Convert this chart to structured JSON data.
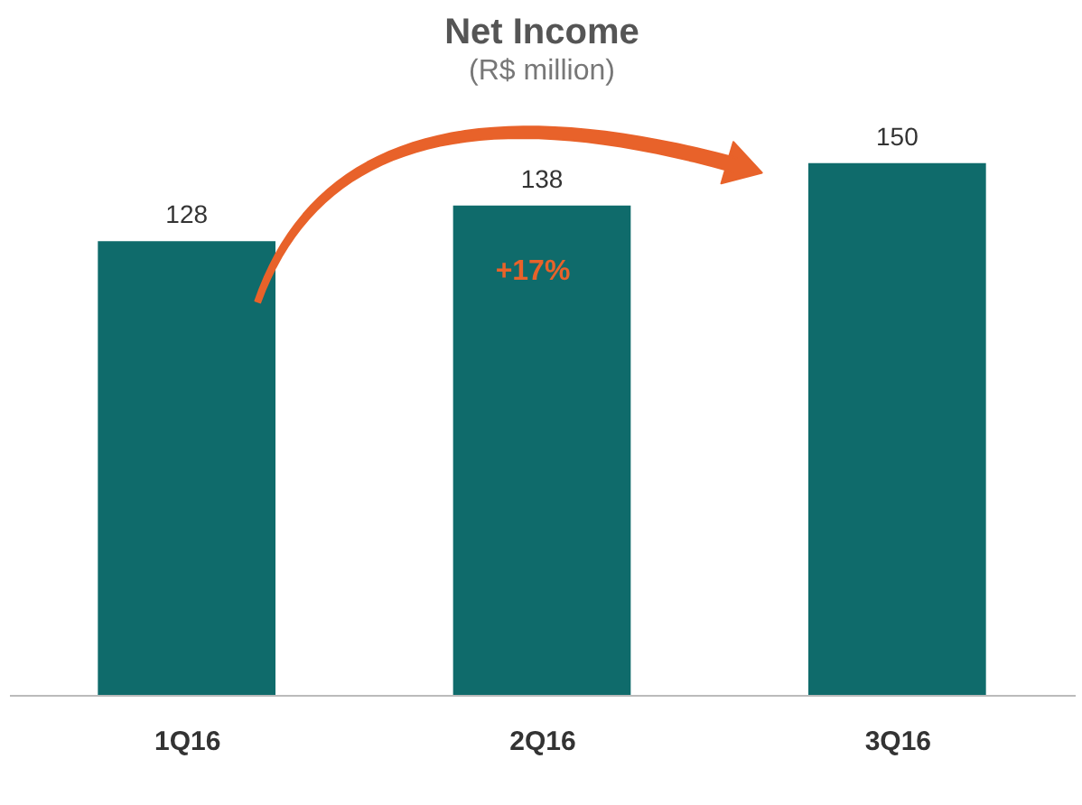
{
  "chart_data": {
    "type": "bar",
    "title": "Net Income",
    "subtitle": "(R$ million)",
    "categories": [
      "1Q16",
      "2Q16",
      "3Q16"
    ],
    "values": [
      128,
      138,
      150
    ],
    "color": "#0f6b6b",
    "data_labels": true,
    "annotations": [
      "+17%"
    ],
    "grid": false,
    "tick_labels": "x"
  }
}
